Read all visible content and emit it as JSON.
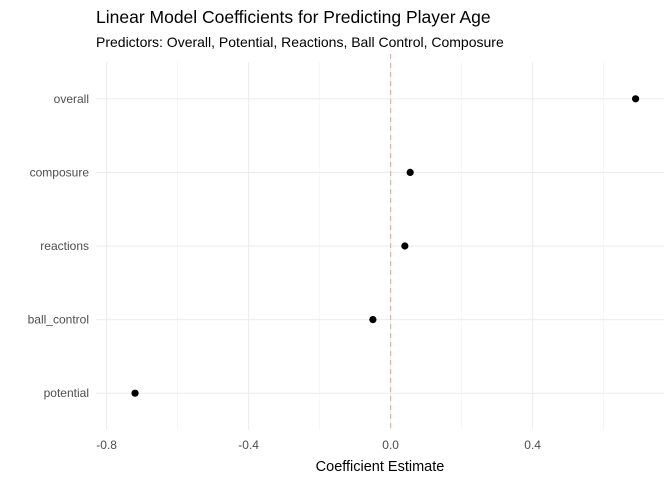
{
  "chart_data": {
    "type": "scatter",
    "title": "Linear Model Coefficients for Predicting Player Age",
    "subtitle": "Predictors: Overall, Potential, Reactions, Ball Control, Composure",
    "xlabel": "Coefficient Estimate",
    "ylabel": "",
    "xlim": [
      -0.83,
      0.77
    ],
    "x_ticks": [
      -0.8,
      -0.4,
      0.0,
      0.4
    ],
    "x_tick_labels": [
      "-0.8",
      "-0.4",
      "0.0",
      "0.4"
    ],
    "categories": [
      "potential",
      "ball_control",
      "reactions",
      "composure",
      "overall"
    ],
    "values": [
      -0.72,
      -0.05,
      0.04,
      0.055,
      0.69
    ],
    "reference_line": {
      "x": 0,
      "style": "dashed",
      "color": "#e4a58d"
    },
    "grid": true,
    "point_color": "#000000"
  }
}
